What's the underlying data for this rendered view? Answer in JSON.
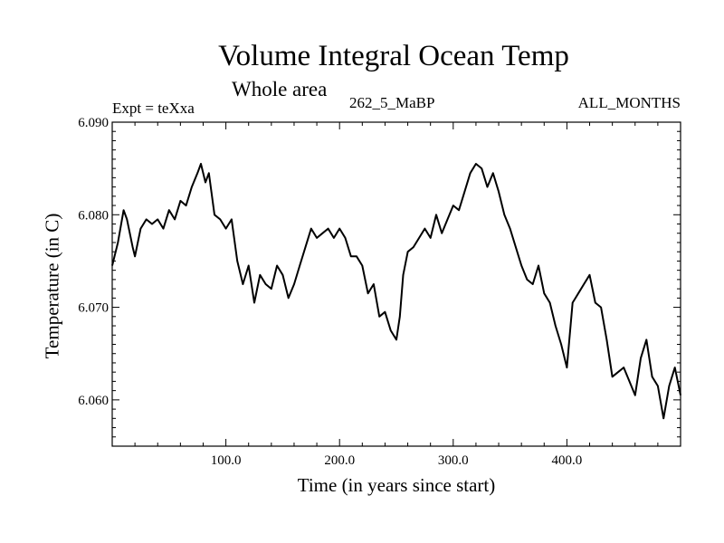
{
  "chart_data": {
    "type": "line",
    "title": "Volume Integral Ocean Temp",
    "subtitle": "Whole area",
    "annotations": {
      "experiment": "Expt = teXxa",
      "run": "262_5_MaBP",
      "months": "ALL_MONTHS"
    },
    "xlabel": "Time (in years since start)",
    "ylabel": "Temperature (in C)",
    "xlim": [
      0,
      500
    ],
    "ylim": [
      6.055,
      6.09
    ],
    "xticks": [
      100,
      200,
      300,
      400
    ],
    "xtick_labels": [
      "100.0",
      "200.0",
      "300.0",
      "400.0"
    ],
    "yticks": [
      6.06,
      6.07,
      6.08,
      6.09
    ],
    "ytick_labels": [
      "6.060",
      "6.070",
      "6.080",
      "6.090"
    ],
    "series": [
      {
        "name": "Volume integral ocean temperature",
        "x": [
          0,
          5,
          10,
          13,
          18,
          20,
          25,
          30,
          35,
          40,
          45,
          50,
          55,
          60,
          65,
          70,
          75,
          78,
          82,
          85,
          90,
          95,
          100,
          105,
          110,
          115,
          120,
          125,
          130,
          135,
          140,
          145,
          150,
          155,
          160,
          165,
          170,
          175,
          180,
          185,
          190,
          195,
          200,
          205,
          210,
          215,
          220,
          225,
          230,
          235,
          240,
          245,
          250,
          253,
          256,
          260,
          265,
          270,
          275,
          280,
          285,
          290,
          295,
          300,
          305,
          310,
          315,
          320,
          325,
          330,
          335,
          340,
          345,
          350,
          355,
          360,
          365,
          370,
          375,
          380,
          385,
          390,
          395,
          400,
          405,
          410,
          415,
          420,
          425,
          430,
          435,
          440,
          445,
          450,
          455,
          460,
          465,
          470,
          475,
          480,
          485,
          490,
          495,
          500
        ],
        "y": [
          6.0745,
          6.077,
          6.0805,
          6.0795,
          6.0765,
          6.0755,
          6.0785,
          6.0795,
          6.079,
          6.0795,
          6.0785,
          6.0805,
          6.0795,
          6.0815,
          6.081,
          6.083,
          6.0845,
          6.0855,
          6.0835,
          6.0845,
          6.08,
          6.0795,
          6.0785,
          6.0795,
          6.075,
          6.0725,
          6.0745,
          6.0705,
          6.0735,
          6.0725,
          6.072,
          6.0745,
          6.0735,
          6.071,
          6.0725,
          6.0745,
          6.0765,
          6.0785,
          6.0775,
          6.078,
          6.0785,
          6.0775,
          6.0785,
          6.0775,
          6.0755,
          6.0755,
          6.0745,
          6.0715,
          6.0725,
          6.069,
          6.0695,
          6.0675,
          6.0665,
          6.069,
          6.0735,
          6.076,
          6.0765,
          6.0775,
          6.0785,
          6.0775,
          6.08,
          6.078,
          6.0795,
          6.081,
          6.0805,
          6.0825,
          6.0845,
          6.0855,
          6.085,
          6.083,
          6.0845,
          6.0825,
          6.08,
          6.0785,
          6.0765,
          6.0745,
          6.073,
          6.0725,
          6.0745,
          6.0715,
          6.0705,
          6.068,
          6.066,
          6.0635,
          6.0705,
          6.0715,
          6.0725,
          6.0735,
          6.0705,
          6.07,
          6.0665,
          6.0625,
          6.063,
          6.0635,
          6.062,
          6.0605,
          6.0645,
          6.0665,
          6.0625,
          6.0615,
          6.058,
          6.0615,
          6.0635,
          6.0605
        ]
      }
    ]
  }
}
